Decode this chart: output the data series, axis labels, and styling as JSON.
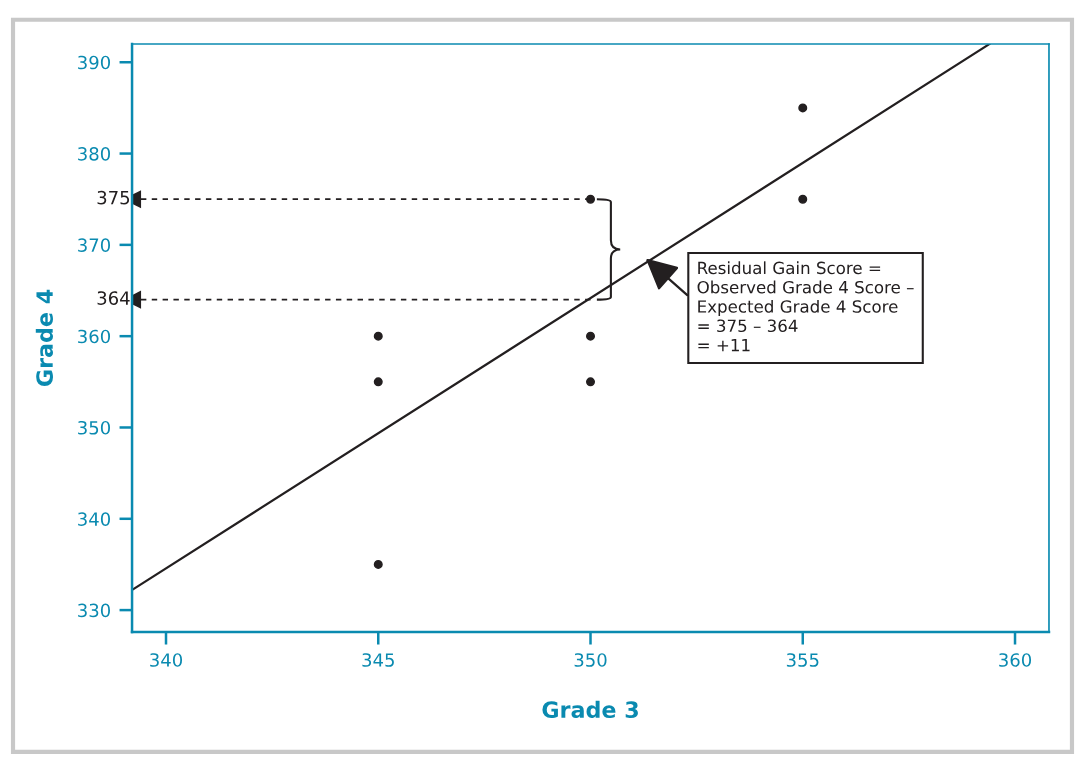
{
  "chart_data": {
    "type": "scatter",
    "xlabel": "Grade 3",
    "ylabel": "Grade 4",
    "xlim": [
      339.2,
      360.8
    ],
    "ylim": [
      327.6,
      392
    ],
    "xticks": [
      340,
      345,
      350,
      355,
      360
    ],
    "yticks": [
      330,
      340,
      350,
      360,
      370,
      380,
      390
    ],
    "grid": false,
    "legend": false,
    "marker": "circle",
    "series": [
      {
        "color": "#231f20",
        "x": [
          345,
          345,
          345,
          350,
          350,
          350,
          355,
          355
        ],
        "values": [
          360,
          355,
          335,
          375,
          360,
          355,
          385,
          375
        ]
      },
      {
        "type": "line",
        "color": "#231f20",
        "x": [
          339.2,
          359.4
        ],
        "values": [
          332.2,
          392
        ],
        "line_style": "solid",
        "marker": "none"
      },
      {
        "type": "line",
        "color": "#231f20",
        "x": [
          350,
          339.2
        ],
        "values": [
          375,
          375
        ],
        "line_style": "dashed",
        "marker": "triangle"
      },
      {
        "type": "line",
        "color": "#231f20",
        "x": [
          350,
          339.2
        ],
        "values": [
          364,
          364
        ],
        "line_style": "dashed",
        "marker": "triangle"
      }
    ],
    "annotations": [
      "375",
      "364",
      {
        "text": "Residual Gain Score =\nObserved Grade 4 Score –\nExpected Grade 4 Score\n= 375 – 364\n= +11",
        "x": 351.3,
        "y": 368.5
      }
    ]
  }
}
